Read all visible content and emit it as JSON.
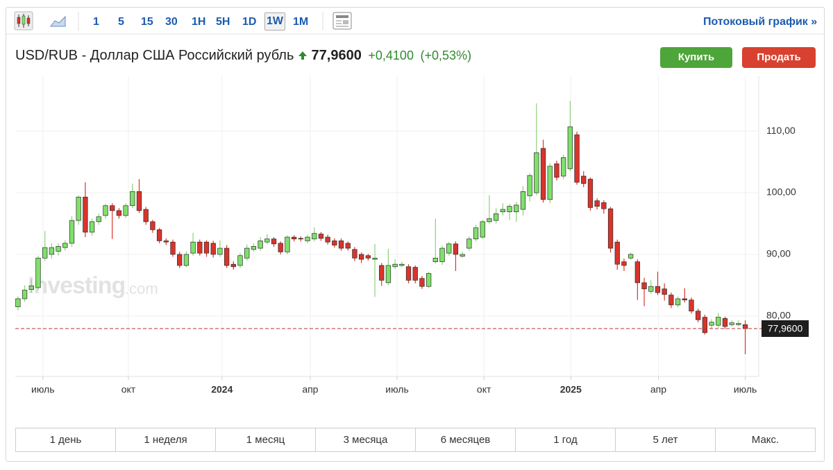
{
  "toolbar": {
    "timeframes": [
      "1",
      "5",
      "15",
      "30",
      "1H",
      "5H",
      "1D",
      "1W",
      "1M"
    ],
    "streaming_link": "Потоковый график »"
  },
  "header": {
    "symbol": "USD/RUB - Доллар США Российский рубль",
    "price": "77,9600",
    "change": "+0,4100",
    "change_pct": "(+0,53%)"
  },
  "buttons": {
    "buy": "Купить",
    "sell": "Продать"
  },
  "watermark": {
    "brand": "Investing",
    "suffix": ".com"
  },
  "periods": [
    "1 день",
    "1 неделя",
    "1 месяц",
    "3 месяца",
    "6 месяцев",
    "1 год",
    "5 лет",
    "Макс."
  ],
  "chart_data": {
    "type": "candlestick",
    "up_color": "#7fe06a",
    "down_color": "#d9342b",
    "grid": true,
    "xlim": [
      -0.4,
      109.9
    ],
    "ylim": [
      70.2,
      118.9
    ],
    "xticks": [
      {
        "value": 3.7,
        "label": "июль"
      },
      {
        "value": 16.4,
        "label": "окт"
      },
      {
        "value": 30.3,
        "label": "2024"
      },
      {
        "value": 43.4,
        "label": "апр"
      },
      {
        "value": 56.3,
        "label": "июль"
      },
      {
        "value": 69.2,
        "label": "окт"
      },
      {
        "value": 82.1,
        "label": "2025"
      },
      {
        "value": 95.1,
        "label": "апр"
      },
      {
        "value": 108,
        "label": "июль"
      }
    ],
    "yticks": [
      {
        "value": 80,
        "label": "80,00"
      },
      {
        "value": 90,
        "label": "90,00"
      },
      {
        "value": 100,
        "label": "100,00"
      },
      {
        "value": 110,
        "label": "110,00"
      }
    ],
    "last_price": {
      "value": 77.96,
      "label": "77,9600"
    },
    "open": [
      81.5,
      82.8,
      84.3,
      84.6,
      89.4,
      90,
      90.5,
      91.1,
      91.8,
      95.5,
      99.3,
      93.6,
      95.3,
      96.3,
      97.9,
      97.1,
      96.3,
      97.9,
      100.2,
      97.3,
      95.3,
      94,
      92.2,
      92,
      90,
      88.2,
      90.2,
      92,
      92,
      91.8,
      90,
      91,
      88.4,
      88.2,
      89.4,
      90.8,
      91,
      92,
      92.5,
      91.8,
      90.4,
      92.8,
      92.6,
      92.2,
      92.5,
      93.3,
      92.8,
      92.2,
      92.2,
      91.8,
      90.8,
      90,
      89.8,
      89.2,
      88.2,
      85.4,
      88,
      88.2,
      88,
      87.9,
      86.1,
      84.8,
      88.8,
      88.8,
      90.2,
      91.7,
      89.7,
      91,
      92.5,
      92.8,
      95.3,
      95.5,
      96.9,
      96.9,
      96.9,
      97.3,
      99.5,
      100,
      107.2,
      98.9,
      104.7,
      102.7,
      103.9,
      109.4,
      102.7,
      102.2,
      98.7,
      98.4,
      97.4,
      92,
      88.8,
      89.4,
      88.8,
      85.4,
      84,
      84.8,
      84.4,
      83.4,
      81.8,
      82.8,
      82.6,
      80.8,
      79.8,
      78.5,
      78.5,
      79.6,
      78.6,
      78.6,
      78.6
    ],
    "high": [
      83.2,
      85,
      86,
      89.8,
      93.8,
      91.8,
      91.8,
      92.3,
      96.2,
      99.6,
      101.7,
      95.8,
      96.6,
      98.2,
      98.3,
      97.5,
      98.3,
      101.5,
      102.2,
      97.7,
      95.6,
      94.3,
      92.6,
      92.4,
      90.4,
      90.5,
      93.5,
      92.4,
      92.3,
      92.2,
      92.3,
      91.5,
      88.9,
      90.2,
      91.6,
      91.8,
      92.8,
      93.3,
      92.8,
      92.1,
      93.1,
      93.1,
      92.9,
      93.2,
      94.4,
      93.6,
      93.2,
      92.6,
      92.6,
      92.1,
      91.2,
      90.3,
      90.1,
      91.7,
      88.6,
      90.9,
      89.2,
      88.8,
      88.4,
      88.2,
      86.5,
      87.2,
      95.8,
      91.4,
      92,
      92.1,
      90.4,
      92.9,
      94.8,
      95.6,
      99.6,
      97.5,
      98.3,
      98.2,
      98.5,
      101.1,
      103.2,
      114.5,
      108.6,
      104.8,
      105.2,
      106.2,
      114.9,
      109.9,
      103.5,
      102.5,
      99.1,
      98.8,
      97.7,
      92.4,
      89.3,
      90.3,
      89.2,
      86.2,
      85.8,
      87.2,
      85.3,
      83.8,
      83.2,
      84.5,
      83,
      81.2,
      80.2,
      79.5,
      80.5,
      79.9,
      79.3,
      79.3,
      79.3
    ],
    "low": [
      80.9,
      82.3,
      83.8,
      84.2,
      88.9,
      89.3,
      89.8,
      90.6,
      91.2,
      94.8,
      92.8,
      93,
      94.8,
      95.8,
      92.5,
      95.8,
      95.9,
      97.5,
      96.7,
      94.8,
      93.5,
      91.8,
      91.5,
      89.6,
      87.8,
      87.9,
      89.8,
      89.8,
      89.6,
      89.5,
      89.6,
      87.8,
      87.5,
      87.8,
      89,
      90.4,
      90.6,
      91.6,
      91.2,
      90,
      90,
      92.1,
      92.1,
      91.8,
      92.1,
      92.2,
      91.6,
      91.1,
      90.6,
      90.6,
      88.9,
      88.6,
      89,
      83.1,
      84.9,
      85,
      87.6,
      87.9,
      85.3,
      85.3,
      84.4,
      84.5,
      88.5,
      88.3,
      89.8,
      87.3,
      89.4,
      90.6,
      92.1,
      92.5,
      95,
      95,
      96.3,
      95.6,
      95.3,
      96.3,
      98.6,
      99.6,
      98.4,
      98.3,
      102,
      102.2,
      103.5,
      101.3,
      100.9,
      97.1,
      97.3,
      96.6,
      90.3,
      87.5,
      87.3,
      89.1,
      82.6,
      81.6,
      83.6,
      83.4,
      82.5,
      81.3,
      81.4,
      82.2,
      80.4,
      79,
      77,
      78,
      78.1,
      77.9,
      78.3,
      78.3,
      73.8
    ],
    "close": [
      82.8,
      84.2,
      84.9,
      89.4,
      91.1,
      91.1,
      91.3,
      91.8,
      95.5,
      99.3,
      93.6,
      95.3,
      96.1,
      97.9,
      97.1,
      96.3,
      97.9,
      100.2,
      97.1,
      95.3,
      94,
      92.2,
      92,
      90,
      88.2,
      90,
      92,
      90.2,
      90.2,
      90,
      91,
      88.2,
      88,
      89.8,
      91,
      91.3,
      92.2,
      92.5,
      91.7,
      90.4,
      92.8,
      92.5,
      92.5,
      92.8,
      93.4,
      92.6,
      92,
      91.5,
      91,
      91,
      89.4,
      89.2,
      89.4,
      89.4,
      85.8,
      88.2,
      88.4,
      88.4,
      85.8,
      85.8,
      84.8,
      86.9,
      89.4,
      91,
      91.7,
      90,
      90,
      92.5,
      94.3,
      95.3,
      95.8,
      96.6,
      97.3,
      97.8,
      98,
      100.2,
      102.8,
      106.5,
      98.9,
      104.3,
      102.5,
      105.7,
      110.7,
      101.7,
      101.5,
      97.6,
      97.8,
      97.4,
      91,
      88.4,
      88.2,
      90,
      85.4,
      84.4,
      84.8,
      83.8,
      83.5,
      81.8,
      82.8,
      82.6,
      80.8,
      79.4,
      77.3,
      79,
      79.8,
      78.3,
      78.9,
      78.8,
      77.96
    ]
  }
}
